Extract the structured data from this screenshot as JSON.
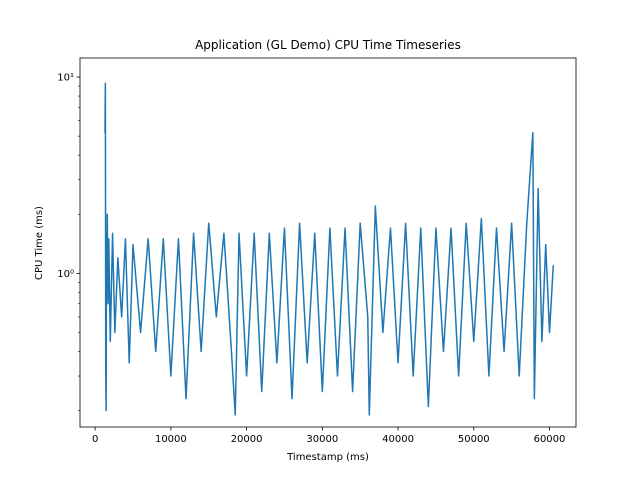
{
  "chart_data": {
    "type": "line",
    "title": "Application (GL Demo) CPU Time Timeseries",
    "xlabel": "Timestamp (ms)",
    "ylabel": "CPU Time (ms)",
    "xscale": "linear",
    "yscale": "log",
    "xlim": [
      -2000,
      63500
    ],
    "ylim": [
      0.165,
      12.5
    ],
    "xticks": [
      0,
      10000,
      20000,
      30000,
      40000,
      50000,
      60000
    ],
    "xtick_labels": [
      "0",
      "10000",
      "20000",
      "30000",
      "40000",
      "50000",
      "60000"
    ],
    "yticks": [
      1,
      10
    ],
    "ytick_labels": [
      "10⁰",
      "10¹"
    ],
    "grid": false,
    "series_color": "#1f77b4",
    "series": [
      {
        "x": [
          1300,
          1350,
          1400,
          1450,
          1500,
          1550,
          1600,
          1700,
          1800,
          2000,
          2300,
          2600,
          3000,
          3500,
          4000,
          4500,
          5000,
          6000,
          7000,
          8000,
          9000,
          10000,
          11000,
          12000,
          13000,
          14000,
          15000,
          16000,
          17000,
          18000,
          18500,
          19000,
          20000,
          21000,
          22000,
          23000,
          24000,
          25000,
          26000,
          27000,
          28000,
          29000,
          30000,
          31000,
          32000,
          33000,
          34000,
          35000,
          36000,
          36200,
          37000,
          38000,
          39000,
          40000,
          41000,
          42000,
          43000,
          44000,
          45000,
          46000,
          47000,
          48000,
          49000,
          50000,
          51000,
          52000,
          53000,
          54000,
          55000,
          56000,
          57000,
          57800,
          58000,
          58500,
          59000,
          59500,
          60000,
          60500
        ],
        "y": [
          5.2,
          9.3,
          0.3,
          0.2,
          1.6,
          0.9,
          2.0,
          0.7,
          1.5,
          0.45,
          1.6,
          0.5,
          1.2,
          0.6,
          1.5,
          0.35,
          1.4,
          0.5,
          1.5,
          0.4,
          1.5,
          0.3,
          1.5,
          0.23,
          1.6,
          0.4,
          1.8,
          0.6,
          1.6,
          0.4,
          0.19,
          1.6,
          0.3,
          1.6,
          0.25,
          1.6,
          0.35,
          1.7,
          0.23,
          1.8,
          0.35,
          1.6,
          0.25,
          1.7,
          0.3,
          1.7,
          0.25,
          1.8,
          0.6,
          0.19,
          2.2,
          0.5,
          1.7,
          0.35,
          1.8,
          0.3,
          1.7,
          0.21,
          1.7,
          0.4,
          1.7,
          0.3,
          1.8,
          0.45,
          1.9,
          0.3,
          1.7,
          0.4,
          1.8,
          0.3,
          1.8,
          5.2,
          0.23,
          2.7,
          0.45,
          1.4,
          0.5,
          1.1
        ]
      }
    ]
  }
}
